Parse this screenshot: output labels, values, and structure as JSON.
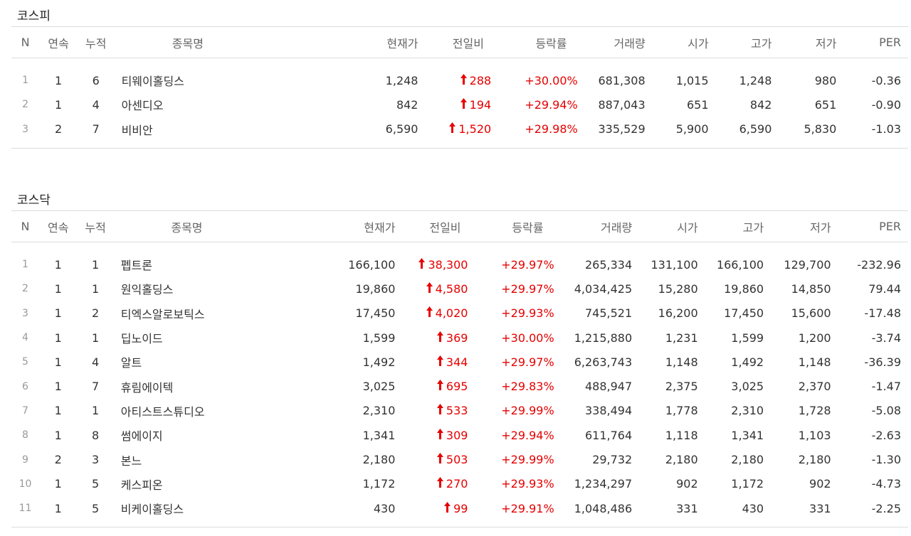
{
  "kospi": {
    "title": "코스피",
    "headers": [
      "N",
      "연속",
      "누적",
      "종목명",
      "현재가",
      "전일비",
      "등락률",
      "거래량",
      "시가",
      "고가",
      "저가",
      "PER"
    ],
    "rows": [
      {
        "n": "1",
        "streak": "1",
        "cumul": "6",
        "name": "티웨이홀딩스",
        "price": "1,248",
        "change": "288",
        "rate": "+30.00%",
        "volume": "681,308",
        "open": "1,015",
        "high": "1,248",
        "low": "980",
        "per": "-0.36"
      },
      {
        "n": "2",
        "streak": "1",
        "cumul": "4",
        "name": "아센디오",
        "price": "842",
        "change": "194",
        "rate": "+29.94%",
        "volume": "887,043",
        "open": "651",
        "high": "842",
        "low": "651",
        "per": "-0.90"
      },
      {
        "n": "3",
        "streak": "2",
        "cumul": "7",
        "name": "비비안",
        "price": "6,590",
        "change": "1,520",
        "rate": "+29.98%",
        "volume": "335,529",
        "open": "5,900",
        "high": "6,590",
        "low": "5,830",
        "per": "-1.03"
      }
    ]
  },
  "kosdaq": {
    "title": "코스닥",
    "headers": [
      "N",
      "연속",
      "누적",
      "종목명",
      "현재가",
      "전일비",
      "등락률",
      "거래량",
      "시가",
      "고가",
      "저가",
      "PER"
    ],
    "rows": [
      {
        "n": "1",
        "streak": "1",
        "cumul": "1",
        "name": "펩트론",
        "price": "166,100",
        "change": "38,300",
        "rate": "+29.97%",
        "volume": "265,334",
        "open": "131,100",
        "high": "166,100",
        "low": "129,700",
        "per": "-232.96"
      },
      {
        "n": "2",
        "streak": "1",
        "cumul": "1",
        "name": "원익홀딩스",
        "price": "19,860",
        "change": "4,580",
        "rate": "+29.97%",
        "volume": "4,034,425",
        "open": "15,280",
        "high": "19,860",
        "low": "14,850",
        "per": "79.44"
      },
      {
        "n": "3",
        "streak": "1",
        "cumul": "2",
        "name": "티엑스알로보틱스",
        "price": "17,450",
        "change": "4,020",
        "rate": "+29.93%",
        "volume": "745,521",
        "open": "16,200",
        "high": "17,450",
        "low": "15,600",
        "per": "-17.48"
      },
      {
        "n": "4",
        "streak": "1",
        "cumul": "1",
        "name": "딥노이드",
        "price": "1,599",
        "change": "369",
        "rate": "+30.00%",
        "volume": "1,215,880",
        "open": "1,231",
        "high": "1,599",
        "low": "1,200",
        "per": "-3.74"
      },
      {
        "n": "5",
        "streak": "1",
        "cumul": "4",
        "name": "알트",
        "price": "1,492",
        "change": "344",
        "rate": "+29.97%",
        "volume": "6,263,743",
        "open": "1,148",
        "high": "1,492",
        "low": "1,148",
        "per": "-36.39"
      },
      {
        "n": "6",
        "streak": "1",
        "cumul": "7",
        "name": "휴림에이텍",
        "price": "3,025",
        "change": "695",
        "rate": "+29.83%",
        "volume": "488,947",
        "open": "2,375",
        "high": "3,025",
        "low": "2,370",
        "per": "-1.47"
      },
      {
        "n": "7",
        "streak": "1",
        "cumul": "1",
        "name": "아티스트스튜디오",
        "price": "2,310",
        "change": "533",
        "rate": "+29.99%",
        "volume": "338,494",
        "open": "1,778",
        "high": "2,310",
        "low": "1,728",
        "per": "-5.08"
      },
      {
        "n": "8",
        "streak": "1",
        "cumul": "8",
        "name": "썸에이지",
        "price": "1,341",
        "change": "309",
        "rate": "+29.94%",
        "volume": "611,764",
        "open": "1,118",
        "high": "1,341",
        "low": "1,103",
        "per": "-2.63"
      },
      {
        "n": "9",
        "streak": "2",
        "cumul": "3",
        "name": "본느",
        "price": "2,180",
        "change": "503",
        "rate": "+29.99%",
        "volume": "29,732",
        "open": "2,180",
        "high": "2,180",
        "low": "2,180",
        "per": "-1.30"
      },
      {
        "n": "10",
        "streak": "1",
        "cumul": "5",
        "name": "케스피온",
        "price": "1,172",
        "change": "270",
        "rate": "+29.93%",
        "volume": "1,234,297",
        "open": "902",
        "high": "1,172",
        "low": "902",
        "per": "-4.73"
      },
      {
        "n": "11",
        "streak": "1",
        "cumul": "5",
        "name": "비케이홀딩스",
        "price": "430",
        "change": "99",
        "rate": "+29.91%",
        "volume": "1,048,486",
        "open": "331",
        "high": "430",
        "low": "331",
        "per": "-2.25"
      }
    ]
  },
  "colors": {
    "up": "#e60000",
    "border": "#dcdcdc",
    "header_text": "#666666"
  },
  "icons": {
    "change_up": "arrow-up-icon"
  }
}
